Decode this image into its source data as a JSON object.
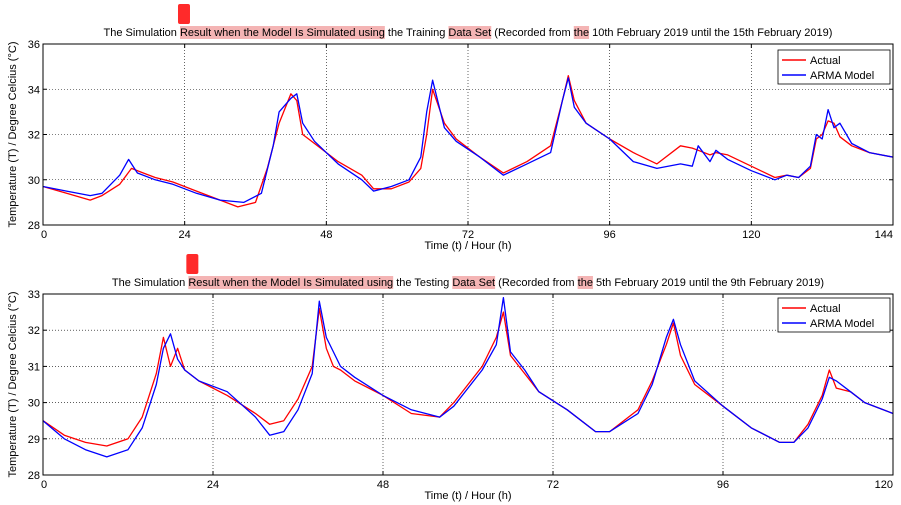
{
  "chart_data": [
    {
      "type": "line",
      "title_parts": [
        {
          "text": "The Simulation ",
          "hl": false
        },
        {
          "text": "Result when the Model Is Simulated using",
          "hl": true
        },
        {
          "text": " the Training ",
          "hl": false
        },
        {
          "text": "Data Set",
          "hl": true
        },
        {
          "text": " (Recorded from ",
          "hl": false
        },
        {
          "text": "the",
          "hl": true
        },
        {
          "text": " 10th February 2019 until the 15th February 2019)",
          "hl": false
        }
      ],
      "xlabel": "Time (t) / Hour (h)",
      "ylabel": "Temperature (T) / Degree Celcius (°C)",
      "xlim": [
        0,
        144
      ],
      "ylim": [
        28,
        36
      ],
      "xticks": [
        0,
        24,
        48,
        72,
        96,
        120,
        144
      ],
      "yticks": [
        28,
        30,
        32,
        34,
        36
      ],
      "xtick_labels": [
        "0",
        "24",
        "48",
        "72",
        "96",
        "120",
        "144"
      ],
      "ytick_labels": [
        "28",
        "30",
        "32",
        "34",
        "36"
      ],
      "legend": {
        "position": "top-right",
        "entries": [
          "Actual",
          "ARMA Model"
        ]
      },
      "series": [
        {
          "name": "Actual",
          "color": "#ff0000",
          "x": [
            0,
            4,
            8,
            10,
            13,
            15,
            17,
            19,
            22,
            26,
            30,
            33,
            36,
            38,
            40,
            42,
            43,
            44,
            46,
            50,
            54,
            56,
            59,
            62,
            64,
            65,
            66,
            68,
            70,
            74,
            78,
            82,
            86,
            88,
            89,
            90,
            92,
            96,
            100,
            104,
            108,
            110,
            111,
            113,
            114,
            116,
            120,
            124,
            126,
            128,
            130,
            131,
            132,
            133,
            134,
            135,
            137,
            140,
            144
          ],
          "y": [
            29.7,
            29.4,
            29.1,
            29.3,
            29.8,
            30.5,
            30.3,
            30.1,
            29.9,
            29.5,
            29.1,
            28.8,
            29.0,
            30.5,
            32.5,
            33.8,
            33.5,
            32.0,
            31.6,
            30.8,
            30.2,
            29.6,
            29.6,
            29.9,
            30.5,
            32.0,
            34.0,
            32.5,
            31.8,
            31.0,
            30.3,
            30.8,
            31.5,
            33.5,
            34.6,
            33.5,
            32.5,
            31.8,
            31.2,
            30.7,
            31.5,
            31.4,
            31.3,
            31.1,
            31.2,
            31.1,
            30.6,
            30.1,
            30.2,
            30.1,
            30.5,
            31.8,
            32.0,
            32.6,
            32.5,
            31.9,
            31.5,
            31.2,
            31.0
          ]
        },
        {
          "name": "ARMA Model",
          "color": "#0000ff",
          "x": [
            0,
            4,
            8,
            10,
            13,
            14.5,
            16,
            19,
            22,
            26,
            30,
            34,
            37,
            39,
            40,
            42,
            43,
            44,
            46,
            50,
            54,
            56,
            59,
            62,
            64,
            65,
            66,
            68,
            70,
            74,
            78,
            82,
            86,
            88,
            89,
            90,
            92,
            96,
            100,
            104,
            108,
            110,
            111,
            113,
            114,
            116,
            120,
            124,
            126,
            128,
            130,
            131,
            132,
            133,
            134,
            135,
            137,
            140,
            144
          ],
          "y": [
            29.7,
            29.5,
            29.3,
            29.4,
            30.2,
            30.9,
            30.3,
            30.0,
            29.8,
            29.4,
            29.1,
            29.0,
            29.4,
            31.5,
            33.0,
            33.6,
            33.8,
            32.5,
            31.7,
            30.7,
            30.0,
            29.5,
            29.7,
            30.0,
            31.0,
            33.0,
            34.4,
            32.3,
            31.7,
            31.0,
            30.2,
            30.7,
            31.2,
            33.5,
            34.5,
            33.2,
            32.5,
            31.8,
            30.8,
            30.5,
            30.7,
            30.6,
            31.5,
            30.8,
            31.3,
            30.9,
            30.4,
            30.0,
            30.2,
            30.1,
            30.6,
            32.0,
            31.8,
            33.1,
            32.3,
            32.5,
            31.6,
            31.2,
            31.0
          ]
        }
      ]
    },
    {
      "type": "line",
      "title_parts": [
        {
          "text": "The Simulation ",
          "hl": false
        },
        {
          "text": "Result when the Model Is Simulated using",
          "hl": true
        },
        {
          "text": " the Testing ",
          "hl": false
        },
        {
          "text": "Data Set",
          "hl": true
        },
        {
          "text": " (Recorded from ",
          "hl": false
        },
        {
          "text": "the",
          "hl": true
        },
        {
          "text": " 5th February 2019 until the 9th February 2019)",
          "hl": false
        }
      ],
      "xlabel": "Time (t) / Hour (h)",
      "ylabel": "Temperature (T) / Degree Celcius (°C)",
      "xlim": [
        0,
        120
      ],
      "ylim": [
        28,
        33
      ],
      "xticks": [
        0,
        24,
        48,
        72,
        96,
        120
      ],
      "yticks": [
        28,
        29,
        30,
        31,
        32,
        33
      ],
      "xtick_labels": [
        "0",
        "24",
        "48",
        "72",
        "96",
        "120"
      ],
      "ytick_labels": [
        "28",
        "29",
        "30",
        "31",
        "32",
        "33"
      ],
      "legend": {
        "position": "top-right",
        "entries": [
          "Actual",
          "ARMA Model"
        ]
      },
      "series": [
        {
          "name": "Actual",
          "color": "#ff0000",
          "x": [
            0,
            3,
            6,
            9,
            12,
            14,
            16,
            17,
            18,
            19,
            20,
            22,
            26,
            30,
            32,
            34,
            36,
            38,
            39,
            40,
            41,
            42,
            44,
            48,
            52,
            56,
            58,
            60,
            62,
            64,
            65,
            66,
            68,
            70,
            74,
            78,
            80,
            84,
            86,
            88,
            89,
            90,
            92,
            96,
            100,
            104,
            106,
            108,
            110,
            111,
            112,
            114,
            116,
            120
          ],
          "y": [
            29.5,
            29.1,
            28.9,
            28.8,
            29.0,
            29.6,
            30.8,
            31.8,
            31.0,
            31.5,
            30.9,
            30.6,
            30.2,
            29.7,
            29.4,
            29.5,
            30.1,
            31.0,
            32.6,
            31.5,
            31.0,
            30.9,
            30.6,
            30.2,
            29.7,
            29.6,
            30.0,
            30.5,
            31.0,
            31.8,
            32.5,
            31.3,
            30.8,
            30.3,
            29.8,
            29.2,
            29.2,
            29.8,
            30.6,
            31.6,
            32.2,
            31.3,
            30.5,
            29.9,
            29.3,
            28.9,
            28.9,
            29.4,
            30.2,
            30.9,
            30.4,
            30.3,
            30.0,
            29.7
          ]
        },
        {
          "name": "ARMA Model",
          "color": "#0000ff",
          "x": [
            0,
            3,
            6,
            9,
            12,
            14,
            16,
            17,
            18,
            19,
            20,
            22,
            26,
            30,
            32,
            34,
            36,
            38,
            39,
            40,
            41,
            42,
            44,
            48,
            52,
            56,
            58,
            60,
            62,
            64,
            65,
            66,
            68,
            70,
            74,
            78,
            80,
            84,
            86,
            88,
            89,
            90,
            92,
            96,
            100,
            104,
            106,
            108,
            110,
            111,
            112,
            114,
            116,
            120
          ],
          "y": [
            29.5,
            29.0,
            28.7,
            28.5,
            28.7,
            29.3,
            30.5,
            31.5,
            31.9,
            31.2,
            30.9,
            30.6,
            30.3,
            29.6,
            29.1,
            29.2,
            29.8,
            30.8,
            32.8,
            31.8,
            31.4,
            31.0,
            30.7,
            30.2,
            29.8,
            29.6,
            29.9,
            30.4,
            30.9,
            31.6,
            32.9,
            31.4,
            30.9,
            30.3,
            29.8,
            29.2,
            29.2,
            29.7,
            30.5,
            31.8,
            32.3,
            31.6,
            30.6,
            29.9,
            29.3,
            28.9,
            28.9,
            29.3,
            30.1,
            30.7,
            30.6,
            30.3,
            30.0,
            29.7
          ]
        }
      ]
    }
  ]
}
